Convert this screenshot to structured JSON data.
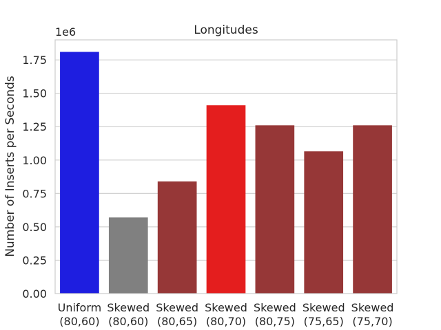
{
  "chart_data": {
    "type": "bar",
    "title": "Longitudes",
    "xlabel": "",
    "ylabel": "Number of Inserts per Seconds",
    "y_multiplier_label": "1e6",
    "ylim": [
      0,
      1.9
    ],
    "yticks": [
      0.0,
      0.25,
      0.5,
      0.75,
      1.0,
      1.25,
      1.5,
      1.75
    ],
    "ytick_labels": [
      "0.00",
      "0.25",
      "0.50",
      "0.75",
      "1.00",
      "1.25",
      "1.50",
      "1.75"
    ],
    "grid": "horizontal",
    "categories": [
      {
        "line1": "Uniform",
        "line2": "(80,60)"
      },
      {
        "line1": "Skewed",
        "line2": "(80,60)"
      },
      {
        "line1": "Skewed",
        "line2": "(80,65)"
      },
      {
        "line1": "Skewed",
        "line2": "(80,70)"
      },
      {
        "line1": "Skewed",
        "line2": "(80,75)"
      },
      {
        "line1": "Skewed",
        "line2": "(75,65)"
      },
      {
        "line1": "Skewed",
        "line2": "(75,70)"
      }
    ],
    "values": [
      1.81,
      0.57,
      0.84,
      1.41,
      1.26,
      1.065,
      1.26
    ],
    "colors": [
      "#1e1ee0",
      "#808080",
      "#963737",
      "#e41e1e",
      "#963737",
      "#963737",
      "#963737"
    ]
  }
}
